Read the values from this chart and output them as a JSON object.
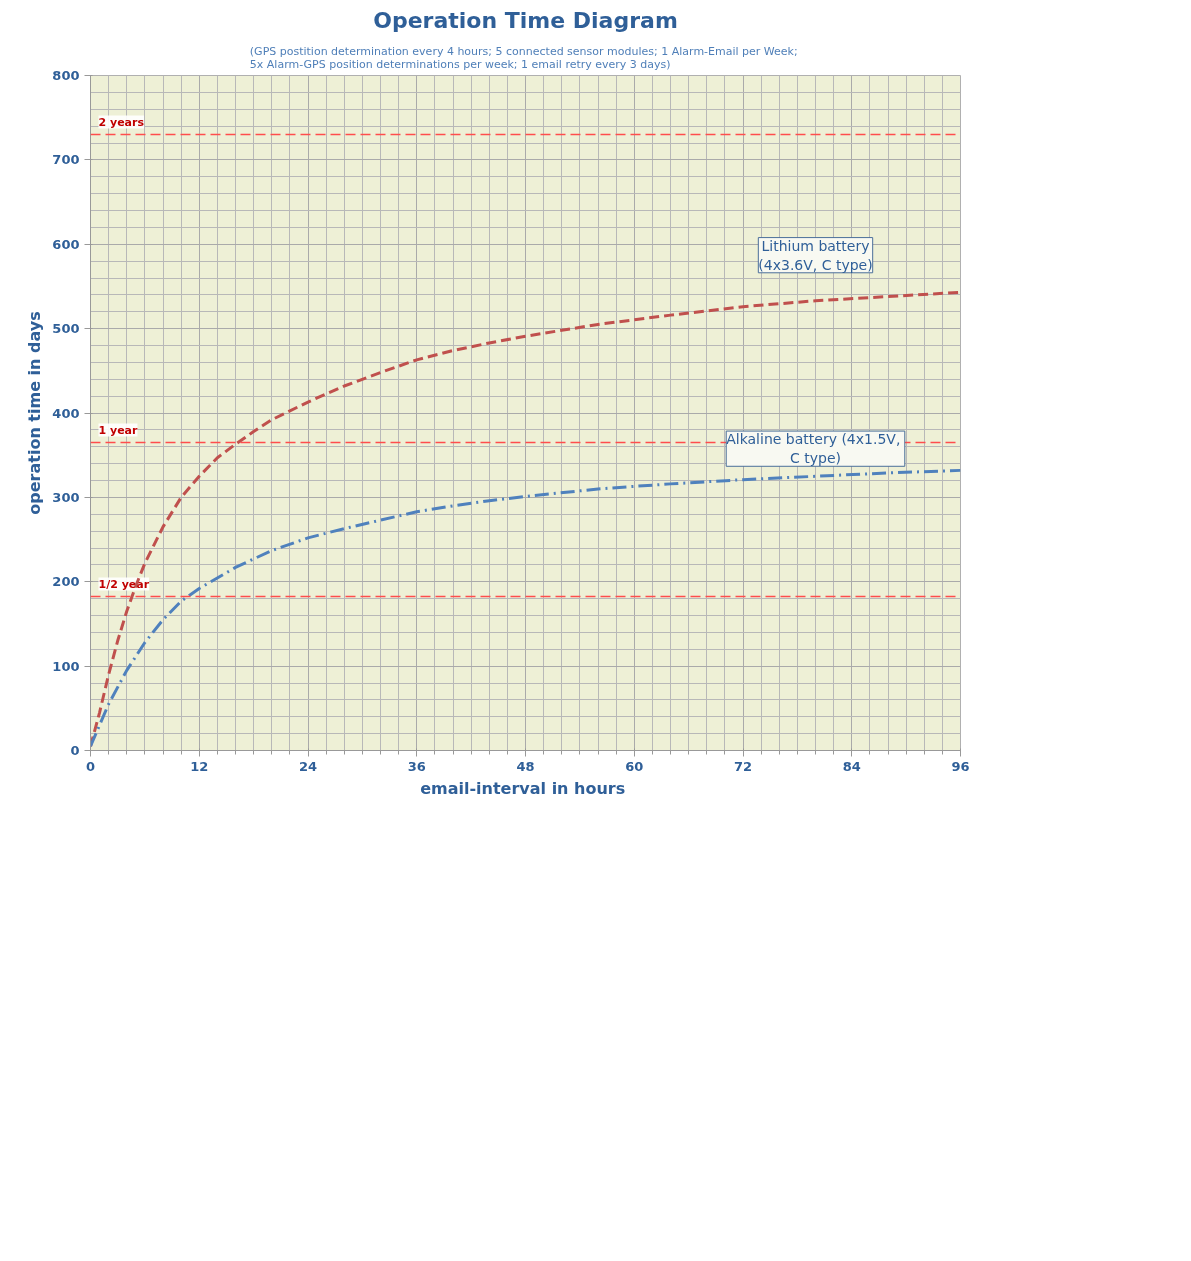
{
  "chart_data": {
    "type": "line",
    "title": "Operation Time Diagram",
    "subtitle": "(GPS postition  determination every 4 hours; 5 connected sensor modules; 1 Alarm-Email per Week;\n5x Alarm-GPS position determinations per week; 1 email retry every 3 days)",
    "xlabel": "email-interval  in hours",
    "ylabel": "operation time in days",
    "xlim": [
      0,
      96
    ],
    "xticks": [
      0,
      12,
      24,
      36,
      48,
      60,
      72,
      84,
      96
    ],
    "ylim": [
      0,
      800
    ],
    "yticks": [
      0,
      100,
      200,
      300,
      400,
      500,
      600,
      700,
      800
    ],
    "grid": true,
    "marker": "none",
    "series": [
      {
        "name": "Lithium battery\n(4x3.6V, C type)",
        "color": "#c0504d",
        "line_style": "dashed",
        "x": [
          0,
          1,
          2,
          3,
          4,
          5,
          6,
          8,
          10,
          12,
          14,
          16,
          18,
          20,
          24,
          28,
          32,
          36,
          40,
          44,
          48,
          56,
          64,
          72,
          80,
          88,
          96
        ],
        "values": [
          5,
          45,
          90,
          130,
          165,
          195,
          222,
          265,
          300,
          325,
          347,
          363,
          378,
          392,
          413,
          432,
          448,
          463,
          474,
          483,
          491,
          505,
          516,
          526,
          533,
          538,
          543
        ]
      },
      {
        "name": "Alkaline battery  (4x1.5V,\nC type)",
        "color": "#4f81bd",
        "line_style": "dashdot",
        "x": [
          0,
          1,
          2,
          4,
          6,
          8,
          10,
          12,
          16,
          20,
          24,
          28,
          32,
          36,
          40,
          44,
          48,
          56,
          64,
          72,
          80,
          88,
          96
        ],
        "values": [
          5,
          30,
          55,
          95,
          128,
          155,
          177,
          192,
          217,
          237,
          252,
          263,
          273,
          283,
          290,
          296,
          301,
          310,
          316,
          321,
          325,
          329,
          332
        ]
      }
    ],
    "ref_lines": [
      {
        "axis": "y",
        "value": 730,
        "label": "2 years",
        "color": "#ff4d4d",
        "line_style": "dashed"
      },
      {
        "axis": "y",
        "value": 365,
        "label": "1 year",
        "color": "#ff4d4d",
        "line_style": "dashed"
      },
      {
        "axis": "y",
        "value": 182.5,
        "label": "1/2 year",
        "color": "#ff4d4d",
        "line_style": "dashed"
      }
    ]
  }
}
